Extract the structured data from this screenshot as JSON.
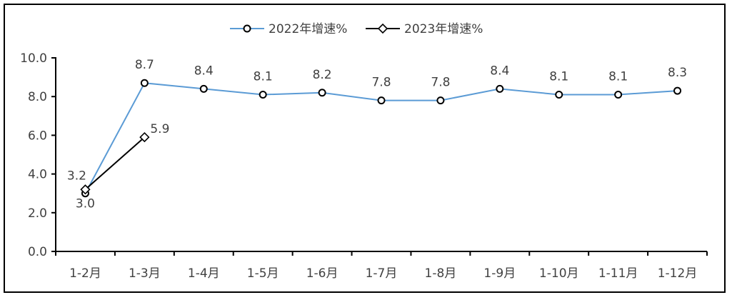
{
  "chart_data": {
    "type": "line",
    "categories": [
      "1-2月",
      "1-3月",
      "1-4月",
      "1-5月",
      "1-6月",
      "1-7月",
      "1-8月",
      "1-9月",
      "1-10月",
      "1-11月",
      "1-12月"
    ],
    "series": [
      {
        "name": "2022年增速%",
        "values": [
          3.0,
          8.7,
          8.4,
          8.1,
          8.2,
          7.8,
          7.8,
          8.4,
          8.1,
          8.1,
          8.3
        ],
        "color": "#5B9BD5",
        "marker": "circle"
      },
      {
        "name": "2023年增速%",
        "values": [
          3.2,
          5.9,
          null,
          null,
          null,
          null,
          null,
          null,
          null,
          null,
          null
        ],
        "color": "#000000",
        "marker": "diamond"
      }
    ],
    "yticks": [
      "0.0",
      "2.0",
      "4.0",
      "6.0",
      "8.0",
      "10.0"
    ],
    "ylim": [
      0,
      10
    ],
    "title": "",
    "xlabel": "",
    "ylabel": "",
    "grid": false,
    "legend": "top"
  }
}
